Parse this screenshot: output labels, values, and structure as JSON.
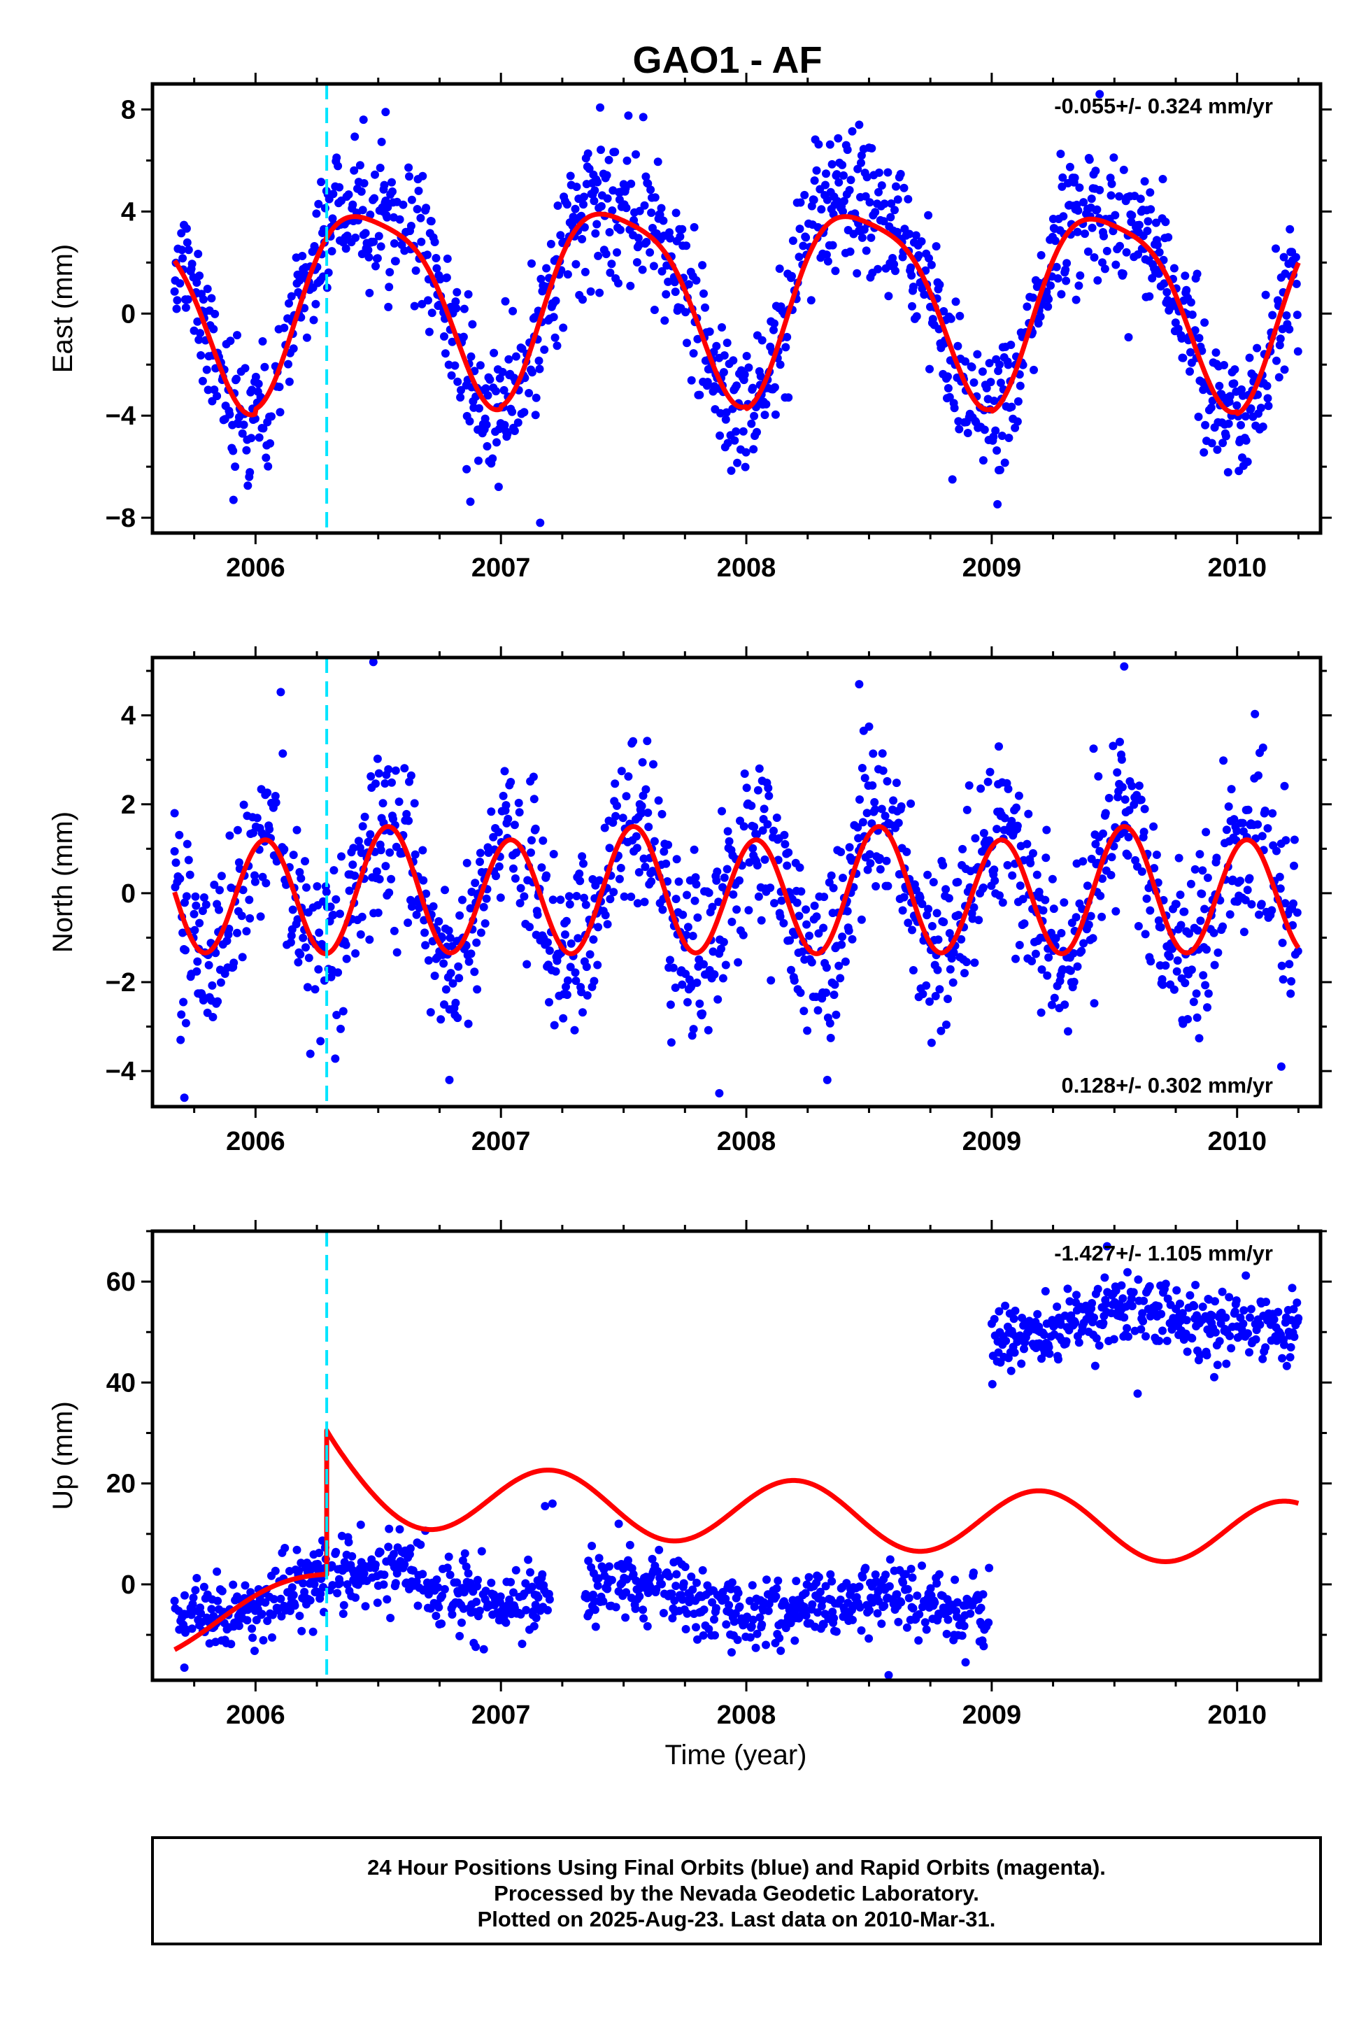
{
  "title": "GAO1 - AF",
  "xlabel": "Time (year)",
  "colors": {
    "final_orbits": "#0000ff",
    "model": "#ff0000",
    "equipment_change": "#00e5ff",
    "frame": "#000000"
  },
  "footer": {
    "line1": "24 Hour Positions Using Final Orbits (blue) and Rapid Orbits (magenta).",
    "line2": "Processed by the Nevada Geodetic Laboratory.",
    "line3": "Plotted on 2025-Aug-23. Last data on 2010-Mar-31."
  },
  "chart_data": [
    {
      "type": "scatter",
      "component": "East",
      "ylabel": "East (mm)",
      "rate": "-0.055+/- 0.324 mm/yr",
      "rate_placement": "top-right",
      "xlim": [
        2005.58,
        2010.34
      ],
      "ylim": [
        -8.6,
        9.0
      ],
      "xticks": [
        2006,
        2007,
        2008,
        2009,
        2010
      ],
      "xtick_labels": [
        "2006",
        "2007",
        "2008",
        "2009",
        "2010"
      ],
      "yticks": [
        -8,
        -4,
        0,
        4,
        8
      ],
      "ytick_labels": [
        "−8",
        "−4",
        "0",
        "4",
        "8"
      ],
      "equipment_change_x": 2006.29,
      "data_span": [
        2005.67,
        2010.25
      ],
      "model": {
        "amplitude": 3.7,
        "peak_phase": 0.47,
        "semiannual_amplitude": 0.8,
        "year_offsets": {
          "2005": 0.7,
          "2006": 0.9,
          "2007": 1.0,
          "2008": 0.9,
          "2009": 0.8,
          "2010": 0.7
        }
      },
      "scatter_sd": 1.3,
      "notable_points": [
        {
          "x": 2006.53,
          "y": 7.9
        },
        {
          "x": 2006.44,
          "y": 7.6
        },
        {
          "x": 2007.58,
          "y": 7.7
        },
        {
          "x": 2008.46,
          "y": 7.4
        },
        {
          "x": 2009.44,
          "y": 8.6
        },
        {
          "x": 2005.91,
          "y": -7.3
        },
        {
          "x": 2007.16,
          "y": -8.2
        },
        {
          "x": 2008.84,
          "y": -6.5
        },
        {
          "x": 2006.86,
          "y": -6.1
        }
      ]
    },
    {
      "type": "scatter",
      "component": "North",
      "ylabel": "North (mm)",
      "rate": "0.128+/- 0.302 mm/yr",
      "rate_placement": "bottom-right",
      "xlim": [
        2005.58,
        2010.34
      ],
      "ylim": [
        -4.8,
        5.3
      ],
      "xticks": [
        2006,
        2007,
        2008,
        2009,
        2010
      ],
      "xtick_labels": [
        "2006",
        "2007",
        "2008",
        "2009",
        "2010"
      ],
      "yticks": [
        -4,
        -2,
        0,
        2,
        4
      ],
      "ytick_labels": [
        "−4",
        "−2",
        "0",
        "2",
        "4"
      ],
      "equipment_change_x": 2006.29,
      "data_span": [
        2005.67,
        2010.25
      ],
      "model": {
        "semiannual_amplitude": 1.35,
        "semiannual_peak_phase": 0.04,
        "amplitude": 0.15,
        "peak_phase": 0.55
      },
      "scatter_sd": 0.95,
      "notable_points": [
        {
          "x": 2006.48,
          "y": 5.2
        },
        {
          "x": 2009.54,
          "y": 5.1
        },
        {
          "x": 2008.46,
          "y": 4.7
        },
        {
          "x": 2005.71,
          "y": -4.6
        },
        {
          "x": 2007.89,
          "y": -4.5
        },
        {
          "x": 2006.79,
          "y": -4.2
        },
        {
          "x": 2008.33,
          "y": -4.2
        },
        {
          "x": 2010.18,
          "y": -3.9
        },
        {
          "x": 2005.67,
          "y": 1.8
        }
      ]
    },
    {
      "type": "scatter",
      "component": "Up",
      "ylabel": "Up (mm)",
      "rate": "-1.427+/- 1.105 mm/yr",
      "rate_placement": "top-right",
      "xlim": [
        2005.58,
        2010.34
      ],
      "ylim": [
        -19,
        70
      ],
      "xticks": [
        2006,
        2007,
        2008,
        2009,
        2010
      ],
      "xtick_labels": [
        "2006",
        "2007",
        "2008",
        "2009",
        "2010"
      ],
      "yticks": [
        0,
        20,
        40,
        60
      ],
      "ytick_labels": [
        "0",
        "20",
        "40",
        "60"
      ],
      "equipment_change_x": 2006.29,
      "segments": [
        {
          "from": 2005.67,
          "to": 2006.29,
          "mean": -7.5,
          "slope": 16.0,
          "base_year": 2005.67
        },
        {
          "from": 2006.3,
          "to": 2007.2,
          "mean": 0.5,
          "slope": -3.0,
          "base_year": 2006.3
        },
        {
          "from": 2007.34,
          "to": 2008.99,
          "mean": -3.0,
          "slope": -1.0,
          "base_year": 2007.34
        },
        {
          "from": 2009.0,
          "to": 2010.25,
          "mean": 51.0,
          "slope": 2.0,
          "base_year": 2009.0
        }
      ],
      "model": {
        "pre_offset": {
          "start_value": -10.5,
          "end_value": 1.0
        },
        "step_at": 2006.29,
        "post_mean": 18.0,
        "post_slope": -2.5,
        "amplitude": 6.5,
        "peak_phase": 0.2,
        "end_value": 22.0
      },
      "scatter_sd": 3.5,
      "notable_points": [
        {
          "x": 2009.47,
          "y": 67.0
        },
        {
          "x": 2007.18,
          "y": 15.5
        },
        {
          "x": 2007.21,
          "y": 16.0
        },
        {
          "x": 2007.48,
          "y": 12.0
        },
        {
          "x": 2005.71,
          "y": -16.5
        },
        {
          "x": 2008.58,
          "y": -18.0
        }
      ]
    }
  ]
}
